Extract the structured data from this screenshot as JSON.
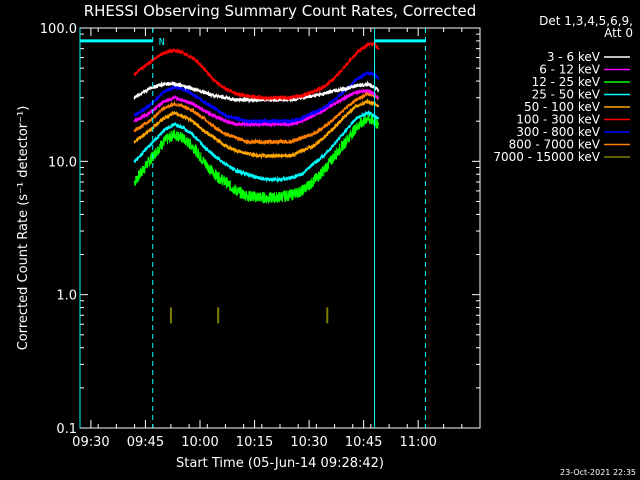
{
  "chart_data": {
    "type": "line",
    "title": "RHESSI Observing Summary Count Rates, Corrected",
    "xlabel": "Start Time (05-Jun-14 09:28:42)",
    "ylabel": "Corrected Count Rate (s⁻¹ detector⁻¹)",
    "y_scale": "log",
    "ylim": [
      0.1,
      100.0
    ],
    "xlim": [
      "09:27",
      "11:17"
    ],
    "x_ticks": [
      "09:30",
      "09:45",
      "10:00",
      "10:15",
      "10:30",
      "10:45",
      "11:00"
    ],
    "y_ticks": [
      "0.1",
      "1.0",
      "10.0",
      "100.0"
    ],
    "legend_title": [
      "Det 1,3,4,5,6,9,",
      "Att 0"
    ],
    "legend_position": "right",
    "timestamp": "23-Oct-2021 22:35",
    "flag_label": "N",
    "grid": false,
    "x": [
      "09:42",
      "09:46",
      "09:50",
      "09:53",
      "09:55",
      "09:58",
      "10:01",
      "10:04",
      "10:07",
      "10:10",
      "10:13",
      "10:16",
      "10:19",
      "10:22",
      "10:25",
      "10:28",
      "10:31",
      "10:34",
      "10:37",
      "10:40",
      "10:43",
      "10:46",
      "10:48",
      "10:49"
    ],
    "series": [
      {
        "name": "3 - 6 keV",
        "color": "#ffffff",
        "values": [
          30,
          35,
          38,
          38,
          37,
          35,
          33,
          31,
          30,
          29,
          29,
          29,
          29,
          29,
          29,
          30,
          31,
          32,
          34,
          35,
          37,
          38,
          36,
          34
        ]
      },
      {
        "name": "6 - 12 keV",
        "color": "#ff00ff",
        "values": [
          20,
          23,
          28,
          30,
          29,
          27,
          24,
          22,
          20,
          19,
          19,
          19,
          19,
          19,
          19,
          20,
          22,
          24,
          27,
          30,
          33,
          34,
          32,
          30
        ]
      },
      {
        "name": "12 - 25 keV",
        "color": "#00ff00",
        "values": [
          7,
          10,
          14,
          16,
          15,
          13,
          10,
          8,
          7,
          6,
          5.5,
          5.4,
          5.3,
          5.4,
          5.6,
          6,
          7,
          8.5,
          11,
          14,
          18,
          21,
          20,
          19
        ]
      },
      {
        "name": "25 - 50 keV",
        "color": "#00ffff",
        "values": [
          10,
          13,
          17,
          19,
          18,
          16,
          13,
          11,
          9.5,
          8.5,
          8,
          7.5,
          7.3,
          7.3,
          7.5,
          8,
          9.5,
          11,
          13.5,
          17,
          21,
          23,
          22,
          21
        ]
      },
      {
        "name": "50 - 100 keV",
        "color": "#ffa500",
        "values": [
          14,
          17,
          21,
          23,
          22,
          20,
          17,
          15,
          13,
          12,
          11.5,
          11,
          11,
          11,
          11,
          12,
          13,
          15,
          18,
          22,
          26,
          28,
          27,
          26
        ]
      },
      {
        "name": "100 - 300 keV",
        "color": "#ff0000",
        "values": [
          45,
          55,
          65,
          68,
          66,
          60,
          50,
          40,
          35,
          32,
          31,
          30,
          30,
          30,
          30,
          31,
          33,
          36,
          42,
          52,
          65,
          75,
          76,
          70
        ]
      },
      {
        "name": "300 - 800 keV",
        "color": "#0000ff",
        "values": [
          22,
          26,
          33,
          36,
          35,
          32,
          28,
          25,
          22,
          21,
          20,
          20,
          20,
          20,
          20,
          21,
          23,
          25,
          29,
          34,
          41,
          46,
          45,
          42
        ]
      },
      {
        "name": "800 - 7000 keV",
        "color": "#ff8000",
        "values": [
          17,
          20,
          25,
          27,
          26,
          24,
          21,
          18,
          16,
          15,
          14,
          14,
          14,
          14,
          14,
          15,
          16,
          18,
          21,
          25,
          29,
          32,
          31,
          30
        ]
      },
      {
        "name": "7000 - 15000 keV",
        "color": "#808000",
        "spikes": [
          {
            "x": "09:52",
            "y": 0.7
          },
          {
            "x": "10:05",
            "y": 0.7
          },
          {
            "x": "10:35",
            "y": 0.7
          }
        ]
      }
    ],
    "overlays": [
      {
        "kind": "flag-bar",
        "color": "#00ffff",
        "x_start": "09:27",
        "x_end": "09:47",
        "y": 80
      },
      {
        "kind": "flag-bar",
        "color": "#00ffff",
        "x_start": "10:48",
        "x_end": "11:02",
        "y": 80
      },
      {
        "kind": "vline-solid",
        "color": "#00ffff",
        "x": "09:27"
      },
      {
        "kind": "vline-dashed",
        "color": "#00ffff",
        "x": "09:47"
      },
      {
        "kind": "vline-solid",
        "color": "#00ffff",
        "x": "10:48"
      },
      {
        "kind": "vline-dashed",
        "color": "#00ffff",
        "x": "11:02"
      }
    ]
  }
}
